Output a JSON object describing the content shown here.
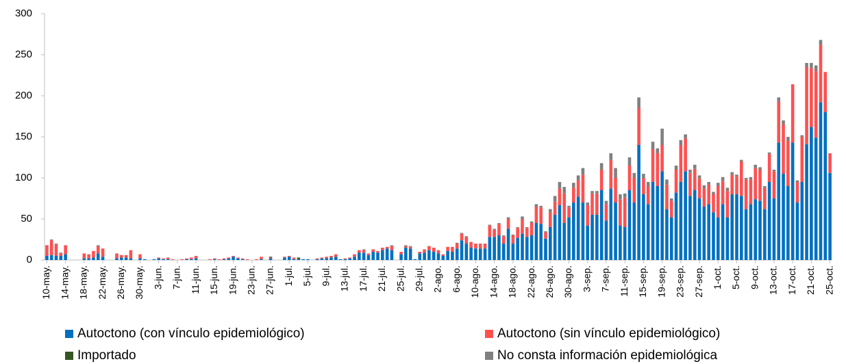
{
  "chart_data": {
    "type": "stacked_bar",
    "categories": [
      "10-may.",
      null,
      null,
      null,
      "14-may.",
      null,
      null,
      null,
      "18-may.",
      null,
      null,
      null,
      "22-may.",
      null,
      null,
      null,
      "26-may.",
      null,
      null,
      null,
      "30-may.",
      null,
      null,
      null,
      "3-jun.",
      null,
      null,
      null,
      "7-jun.",
      null,
      null,
      null,
      "11-jun.",
      null,
      null,
      null,
      "15-jun.",
      null,
      null,
      null,
      "19-jun.",
      null,
      null,
      null,
      "23-jun.",
      null,
      null,
      null,
      "27-jun.",
      null,
      null,
      null,
      "1-jul.",
      null,
      null,
      null,
      "5-jul.",
      null,
      null,
      null,
      "9-jul.",
      null,
      null,
      null,
      "13-jul.",
      null,
      null,
      null,
      "17-jul.",
      null,
      null,
      null,
      "21-jul.",
      null,
      null,
      null,
      "25-jul.",
      null,
      null,
      null,
      "29-jul.",
      null,
      null,
      null,
      "2-ago.",
      null,
      null,
      null,
      "6-ago.",
      null,
      null,
      null,
      "10-ago.",
      null,
      null,
      null,
      "14-ago.",
      null,
      null,
      null,
      "18-ago.",
      null,
      null,
      null,
      "22-ago.",
      null,
      null,
      null,
      "26-ago.",
      null,
      null,
      null,
      "30-ago.",
      null,
      null,
      null,
      "3-sep.",
      null,
      null,
      null,
      "7-sep.",
      null,
      null,
      null,
      "11-sep.",
      null,
      null,
      null,
      "15-sep.",
      null,
      null,
      null,
      "19-sep.",
      null,
      null,
      null,
      "23-sep.",
      null,
      null,
      null,
      "27-sep.",
      null,
      null,
      null,
      "1-oct.",
      null,
      null,
      null,
      "5-oct.",
      null,
      null,
      null,
      "9-oct.",
      null,
      null,
      null,
      "13-oct.",
      null,
      null,
      null,
      "17-oct.",
      null,
      null,
      null,
      "21-oct.",
      null,
      null,
      null,
      "25-oct."
    ],
    "series": [
      {
        "name": "Autoctono (con vínculo epidemiológico)",
        "color": "#0070c0",
        "values": [
          5,
          6,
          5,
          5,
          7,
          0,
          0,
          0,
          2,
          2,
          3,
          8,
          4,
          0,
          0,
          2,
          3,
          3,
          2,
          0,
          2,
          1,
          0,
          1,
          2,
          1,
          1,
          0,
          0,
          0,
          1,
          1,
          2,
          0,
          0,
          0,
          1,
          0,
          1,
          2,
          4,
          2,
          1,
          0,
          0,
          0,
          1,
          0,
          2,
          0,
          0,
          3,
          4,
          1,
          1,
          1,
          1,
          0,
          1,
          2,
          2,
          3,
          4,
          1,
          1,
          2,
          4,
          9,
          9,
          6,
          10,
          9,
          12,
          14,
          12,
          0,
          7,
          15,
          14,
          1,
          8,
          9,
          12,
          10,
          8,
          5,
          11,
          10,
          14,
          24,
          20,
          15,
          14,
          14,
          14,
          28,
          28,
          30,
          20,
          38,
          20,
          27,
          32,
          28,
          30,
          45,
          44,
          26,
          40,
          55,
          67,
          45,
          52,
          70,
          77,
          70,
          42,
          55,
          55,
          85,
          48,
          87,
          70,
          42,
          40,
          85,
          70,
          140,
          80,
          68,
          95,
          90,
          108,
          62,
          52,
          82,
          95,
          108,
          78,
          85,
          75,
          65,
          68,
          58,
          52,
          68,
          52,
          80,
          80,
          78,
          62,
          68,
          74,
          72,
          62,
          95,
          75,
          143,
          105,
          90,
          143,
          70,
          95,
          141,
          162,
          149,
          192,
          180,
          106
        ]
      },
      {
        "name": "Autoctono (sin vínculo epidemiológico)",
        "color": "#ff5050",
        "values": [
          13,
          18,
          14,
          3,
          11,
          0,
          0,
          0,
          6,
          5,
          8,
          9,
          10,
          0,
          0,
          6,
          3,
          3,
          10,
          0,
          5,
          0,
          0,
          0,
          1,
          1,
          2,
          1,
          0,
          1,
          1,
          2,
          3,
          0,
          0,
          1,
          1,
          1,
          1,
          1,
          1,
          1,
          1,
          1,
          0,
          1,
          3,
          0,
          1,
          0,
          0,
          1,
          1,
          2,
          0,
          0,
          0,
          0,
          1,
          1,
          2,
          2,
          3,
          0,
          1,
          1,
          3,
          3,
          3,
          2,
          3,
          2,
          3,
          2,
          5,
          0,
          3,
          2,
          2,
          0,
          2,
          4,
          5,
          5,
          4,
          2,
          5,
          6,
          6,
          8,
          8,
          7,
          6,
          6,
          6,
          14,
          9,
          14,
          9,
          12,
          10,
          12,
          18,
          11,
          15,
          20,
          20,
          8,
          18,
          16,
          20,
          36,
          12,
          18,
          20,
          34,
          25,
          26,
          26,
          25,
          20,
          35,
          30,
          32,
          36,
          30,
          30,
          45,
          20,
          22,
          40,
          40,
          32,
          30,
          20,
          28,
          45,
          40,
          28,
          26,
          24,
          22,
          24,
          22,
          38,
          28,
          32,
          24,
          22,
          42,
          36,
          30,
          38,
          38,
          26,
          34,
          33,
          50,
          60,
          55,
          71,
          25,
          55,
          94,
          72,
          81,
          70,
          49,
          24
        ]
      },
      {
        "name": "Importado",
        "color": "#375623",
        "values": [
          0,
          0,
          0,
          0,
          0,
          0,
          0,
          0,
          0,
          0,
          0,
          0,
          0,
          0,
          0,
          0,
          0,
          0,
          0,
          0,
          0,
          0,
          0,
          0,
          0,
          0,
          0,
          0,
          0,
          0,
          0,
          0,
          0,
          0,
          0,
          0,
          0,
          0,
          0,
          0,
          0,
          0,
          0,
          0,
          0,
          0,
          0,
          0,
          1,
          0,
          0,
          0,
          0,
          0,
          2,
          0,
          0,
          0,
          0,
          0,
          0,
          0,
          0,
          0,
          0,
          0,
          0,
          0,
          0,
          0,
          0,
          0,
          0,
          0,
          0,
          0,
          0,
          0,
          0,
          0,
          0,
          0,
          0,
          0,
          0,
          0,
          0,
          0,
          0,
          0,
          0,
          0,
          0,
          0,
          0,
          0,
          0,
          0,
          0,
          0,
          0,
          0,
          0,
          0,
          0,
          0,
          0,
          0,
          0,
          0,
          0,
          0,
          0,
          0,
          0,
          0,
          0,
          0,
          0,
          0,
          0,
          0,
          0,
          0,
          0,
          0,
          0,
          0,
          0,
          0,
          0,
          0,
          0,
          0,
          0,
          0,
          0,
          0,
          0,
          0,
          0,
          0,
          0,
          0,
          0,
          0,
          0,
          0,
          0,
          0,
          0,
          0,
          0,
          0,
          0,
          0,
          0,
          0,
          0,
          0,
          0,
          0,
          0,
          0,
          0,
          0,
          0,
          0,
          0
        ]
      },
      {
        "name": "No consta información epidemiológica",
        "color": "#808080",
        "values": [
          0,
          1,
          1,
          1,
          0,
          0,
          0,
          0,
          0,
          0,
          0,
          1,
          0,
          0,
          0,
          0,
          0,
          0,
          0,
          0,
          0,
          0,
          0,
          0,
          0,
          0,
          0,
          0,
          0,
          0,
          0,
          0,
          0,
          0,
          0,
          0,
          0,
          0,
          0,
          0,
          0,
          0,
          0,
          0,
          0,
          0,
          0,
          0,
          0,
          0,
          0,
          0,
          0,
          0,
          0,
          0,
          0,
          0,
          0,
          0,
          0,
          0,
          0,
          0,
          0,
          0,
          0,
          0,
          1,
          0,
          0,
          0,
          0,
          0,
          1,
          0,
          0,
          1,
          1,
          0,
          0,
          0,
          0,
          0,
          0,
          0,
          0,
          0,
          1,
          1,
          1,
          0,
          0,
          0,
          0,
          1,
          1,
          1,
          1,
          2,
          1,
          1,
          3,
          1,
          2,
          3,
          2,
          1,
          4,
          7,
          8,
          8,
          2,
          6,
          6,
          8,
          3,
          3,
          3,
          8,
          4,
          8,
          12,
          6,
          5,
          10,
          6,
          13,
          5,
          5,
          9,
          6,
          20,
          6,
          3,
          5,
          6,
          5,
          4,
          5,
          4,
          4,
          3,
          3,
          4,
          5,
          4,
          3,
          2,
          2,
          2,
          3,
          4,
          3,
          2,
          2,
          2,
          5,
          5,
          5,
          0,
          2,
          2,
          5,
          6,
          7,
          6,
          0,
          0
        ]
      }
    ],
    "ylim": [
      0,
      300
    ],
    "yticks": [
      0,
      50,
      100,
      150,
      200,
      250,
      300
    ],
    "grid": false,
    "legend": "bottom"
  }
}
